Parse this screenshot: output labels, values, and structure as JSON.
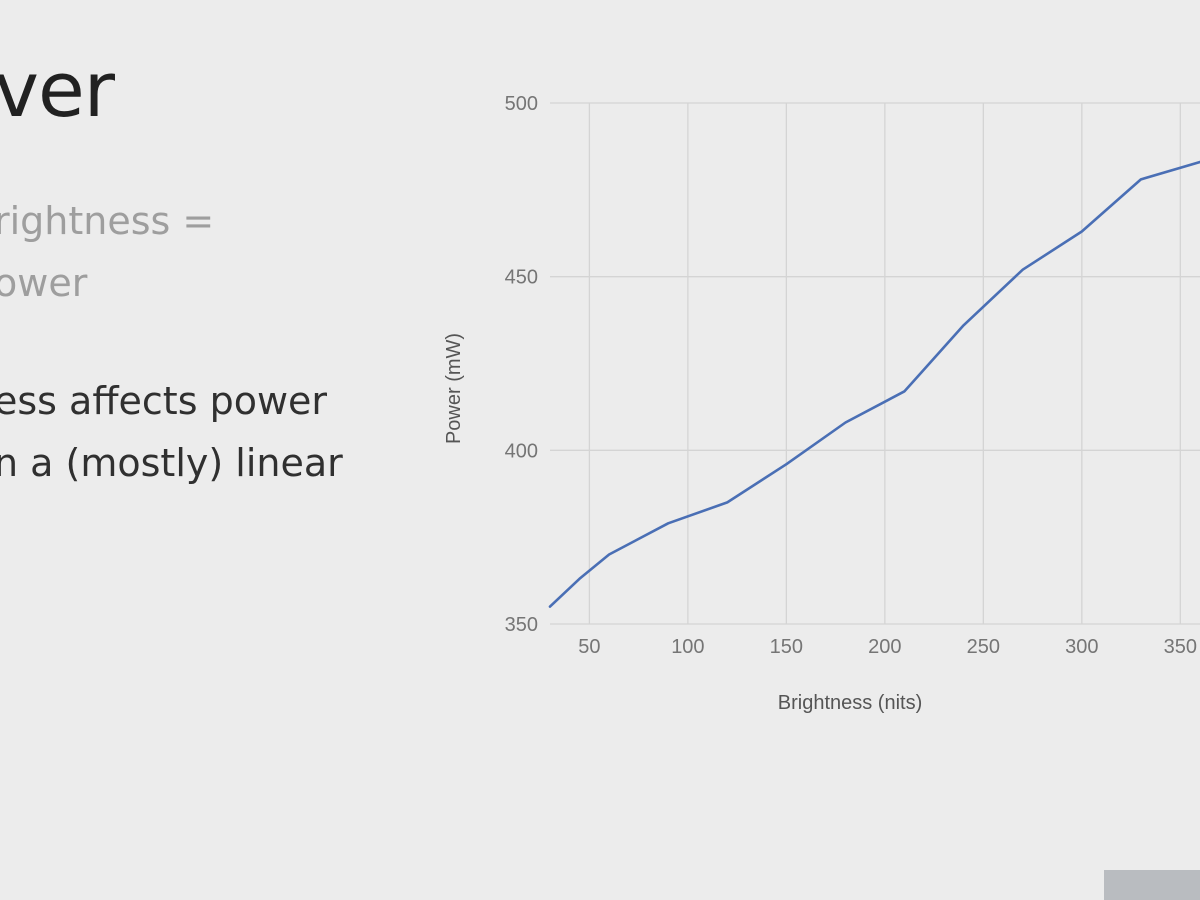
{
  "slide": {
    "title_fragment": "ver",
    "subtitle_lines": [
      "rightness =",
      "ower"
    ],
    "body_lines": [
      "ess affects power",
      "n a (mostly) linear"
    ]
  },
  "chart_data": {
    "type": "line",
    "title": "",
    "xlabel": "Brightness (nits)",
    "ylabel": "Power (mW)",
    "xlim": [
      30,
      360
    ],
    "ylim": [
      350,
      500
    ],
    "x_ticks": [
      50,
      100,
      150,
      200,
      250,
      300,
      350
    ],
    "y_ticks": [
      350,
      400,
      450,
      500
    ],
    "grid": true,
    "colors": {
      "line": "#4a6fb5",
      "grid": "#d4d4d4",
      "background": "#ececec"
    },
    "series": [
      {
        "x": [
          30,
          45,
          60,
          90,
          120,
          150,
          180,
          210,
          240,
          270,
          300,
          330,
          360
        ],
        "values": [
          355,
          363,
          370,
          379,
          385,
          396,
          408,
          417,
          436,
          452,
          463,
          478,
          483
        ]
      }
    ]
  }
}
